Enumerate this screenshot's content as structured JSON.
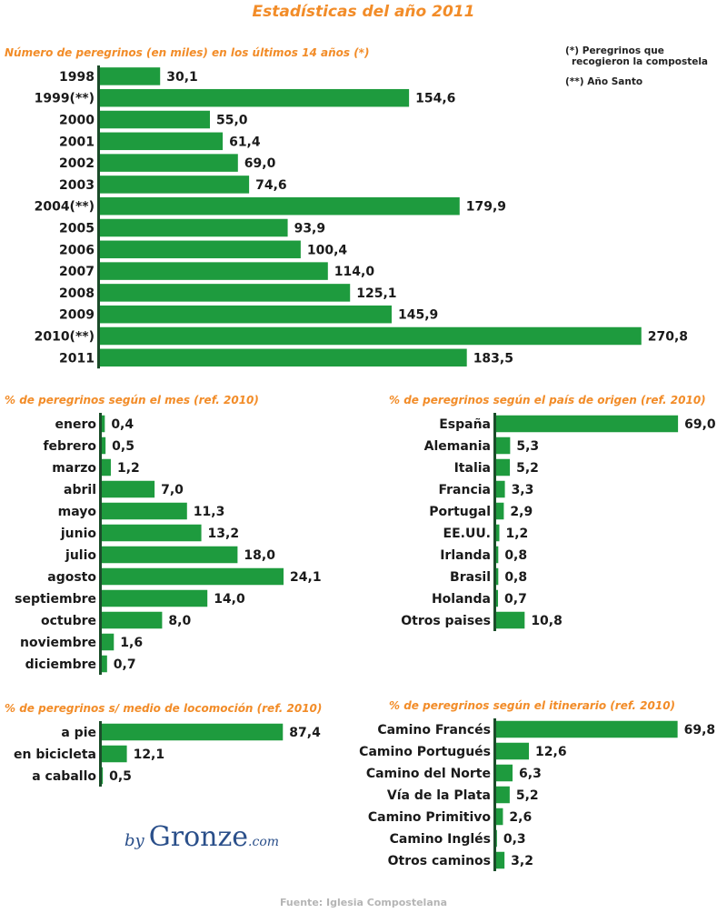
{
  "title": "Estadísticas del año 2011",
  "notes": {
    "star_line1": "(*)   Peregrinos que",
    "star_line2": "recogieron la compostela",
    "double_star": "(**) Año Santo"
  },
  "brand": {
    "by": "by",
    "name": "Gronze",
    "domain": ".com"
  },
  "source": "Fuente: Iglesia Compostelana",
  "colors": {
    "bar": "#1e9b3e",
    "axis": "#1b4d2a",
    "title": "#f28c28",
    "text": "#1a1a1a"
  },
  "chart_data": [
    {
      "type": "bar",
      "orientation": "horizontal",
      "title": "Número de peregrinos (en miles) en los últimos 14 años (*)",
      "categories": [
        "1998",
        "1999(**)",
        "2000",
        "2001",
        "2002",
        "2003",
        "2004(**)",
        "2005",
        "2006",
        "2007",
        "2008",
        "2009",
        "2010(**)",
        "2011"
      ],
      "values": [
        30.1,
        154.6,
        55.0,
        61.4,
        69.0,
        74.6,
        179.9,
        93.9,
        100.4,
        114.0,
        125.1,
        145.9,
        270.8,
        183.5
      ],
      "value_labels": [
        "30,1",
        "154,6",
        "55,0",
        "61,4",
        "69,0",
        "74,6",
        "179,9",
        "93,9",
        "100,4",
        "114,0",
        "125,1",
        "145,9",
        "270,8",
        "183,5"
      ]
    },
    {
      "type": "bar",
      "orientation": "horizontal",
      "title": "% de peregrinos según el mes (ref. 2010)",
      "categories": [
        "enero",
        "febrero",
        "marzo",
        "abril",
        "mayo",
        "junio",
        "julio",
        "agosto",
        "septiembre",
        "octubre",
        "noviembre",
        "diciembre"
      ],
      "values": [
        0.4,
        0.5,
        1.2,
        7.0,
        11.3,
        13.2,
        18.0,
        24.1,
        14.0,
        8.0,
        1.6,
        0.7
      ],
      "value_labels": [
        "0,4",
        "0,5",
        "1,2",
        "7,0",
        "11,3",
        "13,2",
        "18,0",
        "24,1",
        "14,0",
        "8,0",
        "1,6",
        "0,7"
      ]
    },
    {
      "type": "bar",
      "orientation": "horizontal",
      "title": "% de peregrinos según el país de origen (ref. 2010)",
      "categories": [
        "España",
        "Alemania",
        "Italia",
        "Francia",
        "Portugal",
        "EE.UU.",
        "Irlanda",
        "Brasil",
        "Holanda",
        "Otros paises"
      ],
      "values": [
        69.0,
        5.3,
        5.2,
        3.3,
        2.9,
        1.2,
        0.8,
        0.8,
        0.7,
        10.8
      ],
      "value_labels": [
        "69,0",
        "5,3",
        "5,2",
        "3,3",
        "2,9",
        "1,2",
        "0,8",
        "0,8",
        "0,7",
        "10,8"
      ]
    },
    {
      "type": "bar",
      "orientation": "horizontal",
      "title": "% de peregrinos s/ medio de locomoción (ref. 2010)",
      "categories": [
        "a pie",
        "en bicicleta",
        "a caballo"
      ],
      "values": [
        87.4,
        12.1,
        0.5
      ],
      "value_labels": [
        "87,4",
        "12,1",
        "0,5"
      ]
    },
    {
      "type": "bar",
      "orientation": "horizontal",
      "title": "% de peregrinos según el itinerario (ref. 2010)",
      "categories": [
        "Camino Francés",
        "Camino Portugués",
        "Camino del Norte",
        "Vía de la Plata",
        "Camino Primitivo",
        "Camino Inglés",
        "Otros caminos"
      ],
      "values": [
        69.8,
        12.6,
        6.3,
        5.2,
        2.6,
        0.3,
        3.2
      ],
      "value_labels": [
        "69,8",
        "12,6",
        "6,3",
        "5,2",
        "2,6",
        "0,3",
        "3,2"
      ]
    }
  ]
}
